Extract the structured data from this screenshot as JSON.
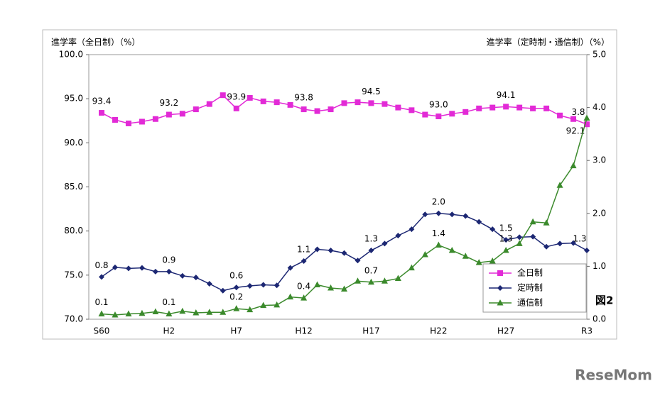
{
  "chart_data": {
    "type": "line",
    "y_label": "進学率（全日制）（%）",
    "y2_label": "進学率（定時制・通信制）（%）",
    "annotation": "図2",
    "watermark": "ReseMom",
    "categories": [
      "S60",
      null,
      null,
      null,
      null,
      "H2",
      null,
      null,
      null,
      null,
      "H7",
      null,
      null,
      null,
      null,
      "H12",
      null,
      null,
      null,
      null,
      "H17",
      null,
      null,
      null,
      null,
      "H22",
      null,
      null,
      null,
      null,
      "H27",
      null,
      null,
      null,
      null,
      null,
      "R3"
    ],
    "ylim": [
      70,
      100
    ],
    "yticks": [
      {
        "value": 70,
        "label": "70.0"
      },
      {
        "value": 75,
        "label": "75.0"
      },
      {
        "value": 80,
        "label": "80.0"
      },
      {
        "value": 85,
        "label": "85.0"
      },
      {
        "value": 90,
        "label": "90.0"
      },
      {
        "value": 95,
        "label": "95.0"
      },
      {
        "value": 100,
        "label": "100.0"
      }
    ],
    "y2lim": [
      0,
      5
    ],
    "y2ticks": [
      {
        "value": 0,
        "label": "0.0"
      },
      {
        "value": 1,
        "label": "1.0"
      },
      {
        "value": 2,
        "label": "2.0"
      },
      {
        "value": 3,
        "label": "3.0"
      },
      {
        "value": 4,
        "label": "4.0"
      },
      {
        "value": 5,
        "label": "5.0"
      }
    ],
    "legend": "lower right",
    "series": [
      {
        "name": "全日制",
        "color": "#e22ad6",
        "marker": "square",
        "axis": "y",
        "values": [
          93.4,
          92.6,
          92.2,
          92.4,
          92.7,
          93.2,
          93.3,
          93.8,
          94.4,
          95.4,
          93.9,
          95.1,
          94.7,
          94.6,
          94.3,
          93.8,
          93.6,
          93.8,
          94.5,
          94.6,
          94.5,
          94.4,
          94.0,
          93.7,
          93.2,
          93.0,
          93.3,
          93.5,
          93.9,
          94.0,
          94.1,
          94.0,
          93.9,
          93.9,
          93.1,
          92.7,
          92.1
        ],
        "value_labels": [
          "93.4",
          null,
          null,
          null,
          null,
          "93.2",
          null,
          null,
          null,
          null,
          "93.9",
          null,
          null,
          null,
          null,
          "93.8",
          null,
          null,
          null,
          null,
          "94.5",
          null,
          null,
          null,
          null,
          "93.0",
          null,
          null,
          null,
          null,
          "94.1",
          null,
          null,
          null,
          null,
          null,
          "92.1"
        ]
      },
      {
        "name": "定時制",
        "color": "#1c2773",
        "marker": "diamond",
        "axis": "y2",
        "values": [
          0.8,
          0.98,
          0.96,
          0.97,
          0.9,
          0.9,
          0.82,
          0.79,
          0.67,
          0.54,
          0.6,
          0.63,
          0.65,
          0.64,
          0.97,
          1.1,
          1.32,
          1.3,
          1.25,
          1.11,
          1.3,
          1.43,
          1.58,
          1.7,
          1.98,
          2.0,
          1.98,
          1.95,
          1.84,
          1.7,
          1.5,
          1.55,
          1.56,
          1.37,
          1.43,
          1.44,
          1.3
        ],
        "value_labels": [
          "0.8",
          null,
          null,
          null,
          null,
          "0.9",
          null,
          null,
          null,
          null,
          "0.6",
          null,
          null,
          null,
          null,
          "1.1",
          null,
          null,
          null,
          null,
          "1.3",
          null,
          null,
          null,
          null,
          "2.0",
          null,
          null,
          null,
          null,
          "1.5",
          null,
          null,
          null,
          null,
          null,
          "1.3"
        ]
      },
      {
        "name": "通信制",
        "color": "#3b8a2c",
        "marker": "triangle",
        "axis": "y2",
        "values": [
          0.1,
          0.08,
          0.1,
          0.11,
          0.14,
          0.1,
          0.15,
          0.12,
          0.13,
          0.13,
          0.2,
          0.18,
          0.26,
          0.27,
          0.42,
          0.4,
          0.65,
          0.59,
          0.57,
          0.72,
          0.7,
          0.72,
          0.77,
          0.97,
          1.22,
          1.4,
          1.3,
          1.19,
          1.07,
          1.1,
          1.3,
          1.43,
          1.84,
          1.82,
          2.53,
          2.9,
          3.8
        ],
        "value_labels": [
          "0.1",
          null,
          null,
          null,
          null,
          "0.1",
          null,
          null,
          null,
          null,
          "0.2",
          null,
          null,
          null,
          null,
          "0.4",
          null,
          null,
          null,
          null,
          "0.7",
          null,
          null,
          null,
          null,
          "1.4",
          null,
          null,
          null,
          null,
          "1.3",
          null,
          null,
          null,
          null,
          null,
          "3.8"
        ]
      }
    ]
  }
}
